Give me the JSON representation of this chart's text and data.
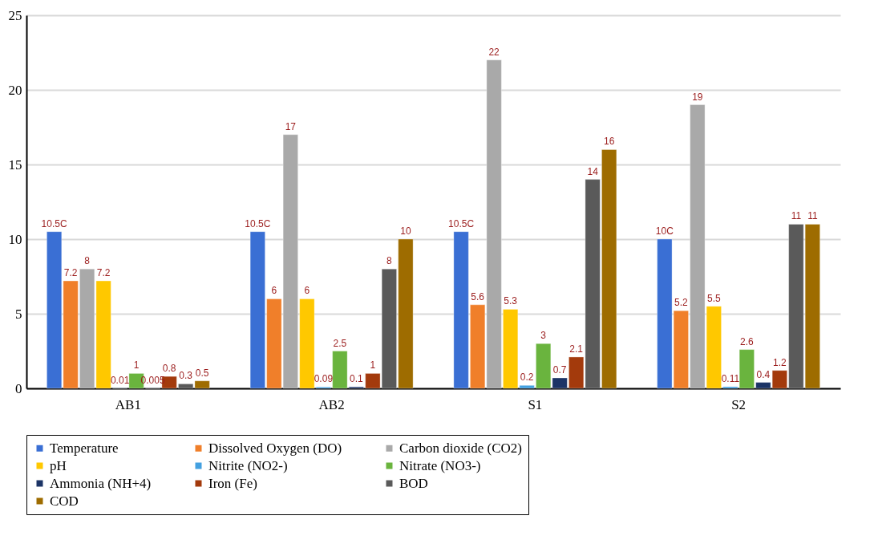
{
  "chart_data": {
    "type": "bar",
    "categories": [
      "AB1",
      "AB2",
      "S1",
      "S2"
    ],
    "series": [
      {
        "name": "Temperature",
        "color": "#3a6fd4",
        "values": [
          10.5,
          10.5,
          10.5,
          10
        ],
        "value_labels": [
          "10.5C",
          "10.5C",
          "10.5C",
          "10C"
        ]
      },
      {
        "name": "Dissolved Oxygen (DO)",
        "color": "#f07f2a",
        "values": [
          7.2,
          6,
          5.6,
          5.2
        ],
        "value_labels": [
          "7.2",
          "6",
          "5.6",
          "5.2"
        ]
      },
      {
        "name": "Carbon dioxide (CO2)",
        "color": "#a9a9a9",
        "values": [
          8,
          17,
          22,
          19
        ],
        "value_labels": [
          "8",
          "17",
          "22",
          "19"
        ]
      },
      {
        "name": "pH",
        "color": "#ffc800",
        "values": [
          7.2,
          6,
          5.3,
          5.5
        ],
        "value_labels": [
          "7.2",
          "6",
          "5.3",
          "5.5"
        ]
      },
      {
        "name": "Nitrite (NO2-)",
        "color": "#43a0e0",
        "values": [
          0.01,
          0.09,
          0.2,
          0.11
        ],
        "value_labels": [
          "0.01",
          "0.09",
          "0.2",
          "0.11"
        ]
      },
      {
        "name": "Nitrate (NO3-)",
        "color": "#6ab43e",
        "values": [
          1,
          2.5,
          3,
          2.6
        ],
        "value_labels": [
          "1",
          "2.5",
          "3",
          "2.6"
        ]
      },
      {
        "name": "Ammonia (NH+4)",
        "color": "#1c3466",
        "values": [
          0.005,
          0.1,
          0.7,
          0.4
        ],
        "value_labels": [
          "0.005",
          "0.1",
          "0.7",
          "0.4"
        ]
      },
      {
        "name": "Iron (Fe)",
        "color": "#a33a0c",
        "values": [
          0.8,
          1,
          2.1,
          1.2
        ],
        "value_labels": [
          "0.8",
          "1",
          "2.1",
          "1.2"
        ]
      },
      {
        "name": "BOD",
        "color": "#5a5a5a",
        "values": [
          0.3,
          8,
          14,
          11
        ],
        "value_labels": [
          "0.3",
          "8",
          "14",
          "11"
        ]
      },
      {
        "name": "COD",
        "color": "#9e6c00",
        "values": [
          0.5,
          10,
          16,
          11
        ],
        "value_labels": [
          "0.5",
          "10",
          "16",
          "11"
        ]
      }
    ],
    "ylim": [
      0,
      25
    ],
    "yticks": [
      0,
      5,
      10,
      15,
      20,
      25
    ],
    "grid": "y",
    "legend": "bottom"
  }
}
